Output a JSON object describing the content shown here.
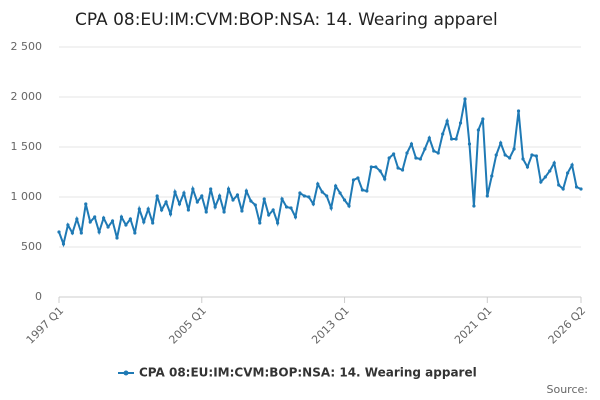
{
  "chart_data": {
    "type": "line",
    "title": "CPA 08:EU:IM:CVM:BOP:NSA: 14. Wearing apparel",
    "source": "Source:",
    "categories": [
      "1997 Q1",
      null,
      null,
      null,
      null,
      null,
      null,
      null,
      null,
      null,
      null,
      null,
      null,
      null,
      null,
      null,
      null,
      null,
      null,
      null,
      null,
      null,
      null,
      null,
      null,
      null,
      null,
      null,
      null,
      null,
      null,
      null,
      "2005 Q1",
      null,
      null,
      null,
      null,
      null,
      null,
      null,
      null,
      null,
      null,
      null,
      null,
      null,
      null,
      null,
      null,
      null,
      null,
      null,
      null,
      null,
      null,
      null,
      null,
      null,
      null,
      null,
      null,
      null,
      null,
      null,
      "2013 Q1",
      null,
      null,
      null,
      null,
      null,
      null,
      null,
      null,
      null,
      null,
      null,
      null,
      null,
      null,
      null,
      null,
      null,
      null,
      null,
      null,
      null,
      null,
      null,
      null,
      null,
      null,
      null,
      null,
      null,
      null,
      null,
      "2021 Q1",
      null,
      null,
      null,
      null,
      null,
      null,
      null,
      null,
      null,
      null,
      null,
      null,
      null,
      null,
      null,
      null,
      null,
      null,
      null,
      null,
      "2026 Q2"
    ],
    "series": [
      {
        "name": "CPA 08:EU:IM:CVM:BOP:NSA: 14. Wearing apparel",
        "color": "#1f7ab5",
        "values": [
          650,
          530,
          720,
          640,
          780,
          640,
          930,
          750,
          800,
          650,
          790,
          700,
          760,
          590,
          800,
          720,
          780,
          640,
          880,
          750,
          880,
          740,
          1010,
          870,
          950,
          830,
          1050,
          930,
          1040,
          870,
          1080,
          950,
          1010,
          850,
          1080,
          900,
          1010,
          850,
          1080,
          970,
          1020,
          860,
          1060,
          960,
          920,
          740,
          980,
          820,
          870,
          740,
          980,
          900,
          890,
          800,
          1040,
          1010,
          1000,
          930,
          1130,
          1050,
          1010,
          890,
          1110,
          1040,
          970,
          910,
          1170,
          1190,
          1070,
          1060,
          1300,
          1300,
          1260,
          1180,
          1390,
          1430,
          1290,
          1270,
          1440,
          1530,
          1390,
          1380,
          1480,
          1590,
          1460,
          1440,
          1630,
          1760,
          1580,
          1580,
          1740,
          1980,
          1530,
          910,
          1670,
          1780,
          1010,
          1210,
          1420,
          1540,
          1420,
          1390,
          1480,
          1860,
          1380,
          1300,
          1420,
          1410,
          1150,
          1200,
          1260,
          1340,
          1120,
          1080,
          1240,
          1320,
          1100,
          1080
        ]
      }
    ],
    "ylim": [
      0,
      2500
    ],
    "yticks": [
      0,
      500,
      {
        "value": 1000,
        "label": "1 000"
      },
      {
        "value": 1500,
        "label": "1 500"
      },
      {
        "value": 2000,
        "label": "2 000"
      },
      {
        "value": 2500,
        "label": "2 500"
      }
    ],
    "grid": true
  }
}
